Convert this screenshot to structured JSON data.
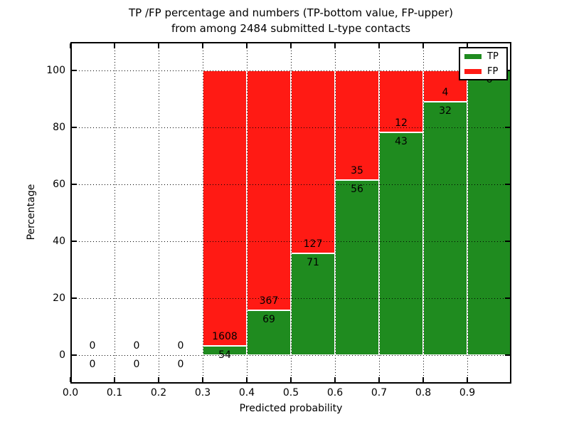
{
  "figure": {
    "title_line1": "TP /FP percentage and numbers (TP-bottom value, FP-upper)",
    "title_line2": "from among 2484 submitted L-type contacts",
    "xlabel": "Predicted probability",
    "ylabel": "Percentage"
  },
  "legend": {
    "items": [
      {
        "label": "TP",
        "color": "#1f8b1f"
      },
      {
        "label": "FP",
        "color": "#ff1a14"
      }
    ]
  },
  "colors": {
    "tp_green": "#1f8b1f",
    "fp_red": "#ff1a14",
    "axis": "#000000",
    "background": "#ffffff"
  },
  "chart_data": {
    "type": "bar",
    "stacked": true,
    "title": "TP /FP percentage and numbers (TP-bottom value, FP-upper) from among 2484 submitted L-type contacts",
    "xlabel": "Predicted probability",
    "ylabel": "Percentage",
    "xlim": [
      0.0,
      1.0
    ],
    "ylim": [
      -10,
      110
    ],
    "grid": true,
    "legend_position": "upper right",
    "series_names": [
      "TP",
      "FP"
    ],
    "xticks": [
      {
        "value": 0.0,
        "label": "0.0"
      },
      {
        "value": 0.1,
        "label": "0.1"
      },
      {
        "value": 0.2,
        "label": "0.2"
      },
      {
        "value": 0.3,
        "label": "0.3"
      },
      {
        "value": 0.4,
        "label": "0.4"
      },
      {
        "value": 0.5,
        "label": "0.5"
      },
      {
        "value": 0.6,
        "label": "0.6"
      },
      {
        "value": 0.7,
        "label": "0.7"
      },
      {
        "value": 0.8,
        "label": "0.8"
      },
      {
        "value": 0.9,
        "label": "0.9"
      }
    ],
    "yticks": [
      {
        "value": 0,
        "label": "0"
      },
      {
        "value": 20,
        "label": "20"
      },
      {
        "value": 40,
        "label": "40"
      },
      {
        "value": 60,
        "label": "60"
      },
      {
        "value": 80,
        "label": "80"
      },
      {
        "value": 100,
        "label": "100"
      }
    ],
    "bars": [
      {
        "x0": 0.0,
        "x1": 0.1,
        "tp": 0,
        "fp": 0,
        "tp_pct": 0,
        "fp_pct": 0,
        "tp_label": "0",
        "fp_label": "0"
      },
      {
        "x0": 0.1,
        "x1": 0.2,
        "tp": 0,
        "fp": 0,
        "tp_pct": 0,
        "fp_pct": 0,
        "tp_label": "0",
        "fp_label": "0"
      },
      {
        "x0": 0.2,
        "x1": 0.3,
        "tp": 0,
        "fp": 0,
        "tp_pct": 0,
        "fp_pct": 0,
        "tp_label": "0",
        "fp_label": "0"
      },
      {
        "x0": 0.3,
        "x1": 0.4,
        "tp": 54,
        "fp": 1608,
        "tp_pct": 3.25,
        "fp_pct": 96.75,
        "tp_label": "54",
        "fp_label": "1608"
      },
      {
        "x0": 0.4,
        "x1": 0.5,
        "tp": 69,
        "fp": 367,
        "tp_pct": 15.83,
        "fp_pct": 84.17,
        "tp_label": "69",
        "fp_label": "367"
      },
      {
        "x0": 0.5,
        "x1": 0.6,
        "tp": 71,
        "fp": 127,
        "tp_pct": 35.86,
        "fp_pct": 64.14,
        "tp_label": "71",
        "fp_label": "127"
      },
      {
        "x0": 0.6,
        "x1": 0.7,
        "tp": 56,
        "fp": 35,
        "tp_pct": 61.54,
        "fp_pct": 38.46,
        "tp_label": "56",
        "fp_label": "35"
      },
      {
        "x0": 0.7,
        "x1": 0.8,
        "tp": 43,
        "fp": 12,
        "tp_pct": 78.18,
        "fp_pct": 21.82,
        "tp_label": "43",
        "fp_label": "12"
      },
      {
        "x0": 0.8,
        "x1": 0.9,
        "tp": 32,
        "fp": 4,
        "tp_pct": 88.89,
        "fp_pct": 11.11,
        "tp_label": "32",
        "fp_label": "4"
      },
      {
        "x0": 0.9,
        "x1": 1.0,
        "tp": 6,
        "fp": 0,
        "tp_pct": 100,
        "fp_pct": 0,
        "tp_label": "6",
        "fp_label": ""
      }
    ]
  }
}
